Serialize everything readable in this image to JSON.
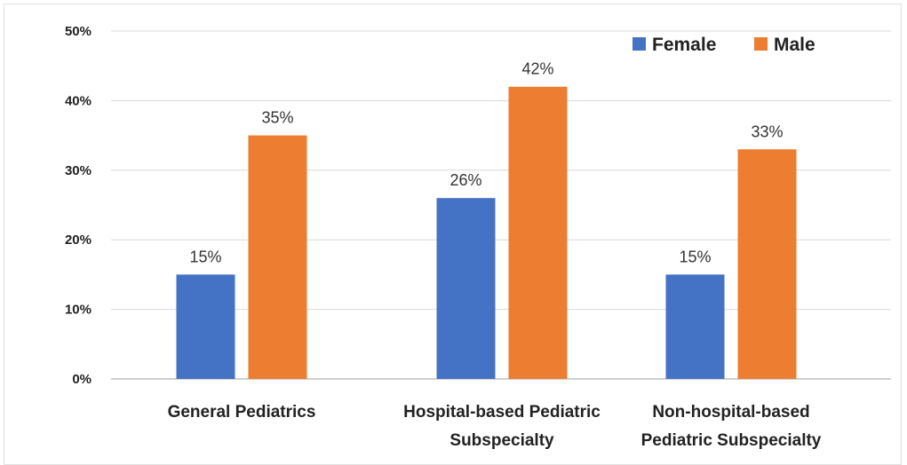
{
  "chart_data": {
    "type": "bar",
    "categories": [
      [
        "General Pediatrics"
      ],
      [
        "Hospital-based Pediatric",
        "Subspecialty"
      ],
      [
        "Non-hospital-based",
        "Pediatric Subspecialty"
      ]
    ],
    "series": [
      {
        "name": "Female",
        "color": "#4472C4",
        "values": [
          15,
          26,
          15
        ]
      },
      {
        "name": "Male",
        "color": "#ED7D31",
        "values": [
          35,
          42,
          33
        ]
      }
    ],
    "value_labels": {
      "Female": [
        "15%",
        "26%",
        "15%"
      ],
      "Male": [
        "35%",
        "42%",
        "33%"
      ]
    },
    "y_ticks": [
      "0%",
      "10%",
      "20%",
      "30%",
      "40%",
      "50%"
    ],
    "ylim": [
      0,
      50
    ],
    "grid": true,
    "legend": "top-right"
  }
}
